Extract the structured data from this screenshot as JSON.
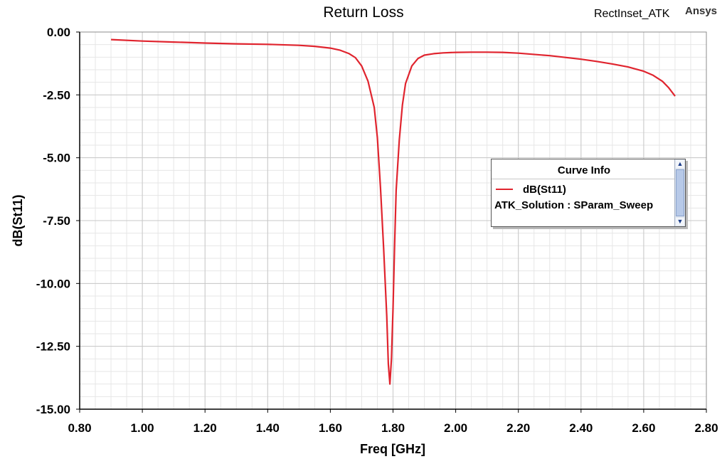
{
  "header": {
    "design_name": "RectInset_ATK",
    "brand": "Ansys"
  },
  "legend": {
    "title": "Curve Info",
    "series_label": "dB(St11)",
    "solution_label": "ATK_Solution : SParam_Sweep",
    "scroll_up_icon": "triangle-up",
    "scroll_down_icon": "triangle-down"
  },
  "colors": {
    "trace": "#e0242e",
    "grid_major": "#c8c8c8",
    "grid_minor": "#e6e6e6"
  },
  "chart_data": {
    "type": "line",
    "title": "Return Loss",
    "xlabel": "Freq [GHz]",
    "ylabel": "dB(St11)",
    "xlim": [
      0.8,
      2.8
    ],
    "ylim": [
      -15.0,
      0.0
    ],
    "x_ticks": [
      "0.80",
      "1.00",
      "1.20",
      "1.40",
      "1.60",
      "1.80",
      "2.00",
      "2.20",
      "2.40",
      "2.60",
      "2.80"
    ],
    "y_ticks": [
      "0.00",
      "-2.50",
      "-5.00",
      "-7.50",
      "-10.00",
      "-12.50",
      "-15.00"
    ],
    "grid": true,
    "legend_position": "right",
    "series": [
      {
        "name": "dB(St11)",
        "x": [
          0.9,
          1.0,
          1.1,
          1.2,
          1.3,
          1.4,
          1.5,
          1.55,
          1.6,
          1.63,
          1.66,
          1.68,
          1.7,
          1.72,
          1.74,
          1.75,
          1.76,
          1.77,
          1.78,
          1.785,
          1.79,
          1.795,
          1.8,
          1.805,
          1.81,
          1.82,
          1.83,
          1.84,
          1.86,
          1.88,
          1.9,
          1.93,
          1.96,
          2.0,
          2.05,
          2.1,
          2.15,
          2.2,
          2.3,
          2.4,
          2.45,
          2.5,
          2.55,
          2.6,
          2.63,
          2.66,
          2.68,
          2.7
        ],
        "y": [
          -0.3,
          -0.36,
          -0.4,
          -0.44,
          -0.47,
          -0.49,
          -0.53,
          -0.57,
          -0.64,
          -0.72,
          -0.86,
          -1.02,
          -1.35,
          -1.95,
          -3.0,
          -4.2,
          -6.2,
          -8.6,
          -11.3,
          -13.2,
          -14.0,
          -13.0,
          -11.0,
          -8.5,
          -6.3,
          -4.3,
          -2.9,
          -2.05,
          -1.35,
          -1.05,
          -0.92,
          -0.86,
          -0.83,
          -0.81,
          -0.8,
          -0.8,
          -0.81,
          -0.84,
          -0.94,
          -1.08,
          -1.17,
          -1.27,
          -1.39,
          -1.56,
          -1.72,
          -1.96,
          -2.22,
          -2.55
        ]
      }
    ]
  }
}
